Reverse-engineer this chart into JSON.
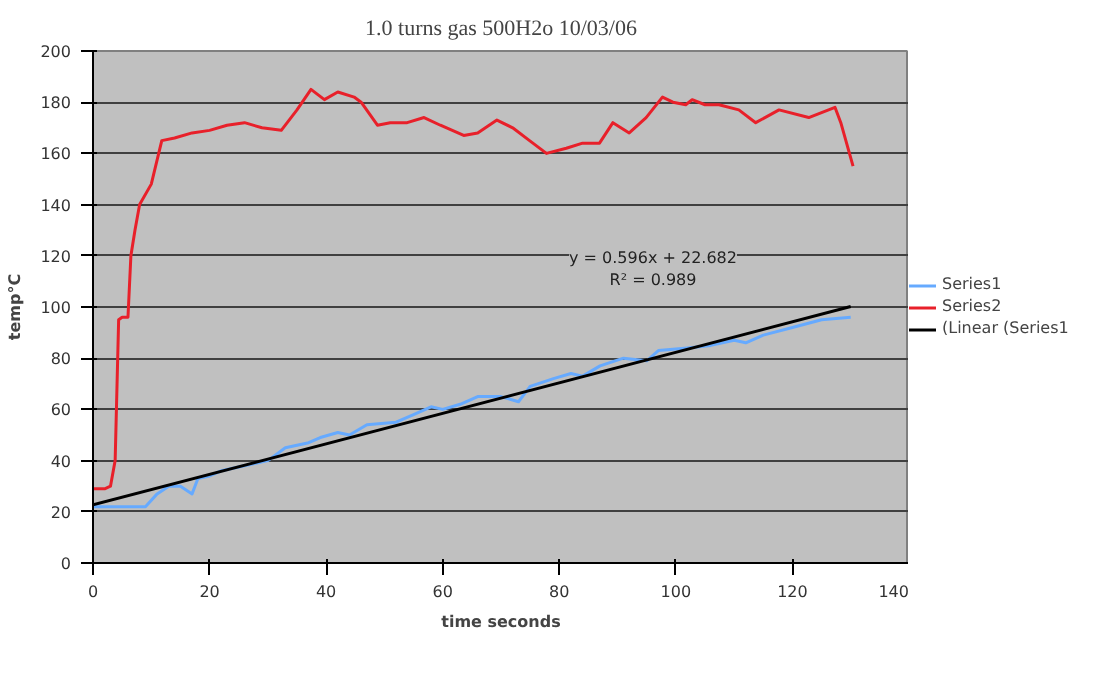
{
  "chart_data": {
    "type": "line",
    "title": "1.0 turns gas 500H2o 10/03/06",
    "xlabel": "time seconds",
    "ylabel": "temp°C",
    "xlim": [
      0,
      140
    ],
    "xticks": [
      0,
      20,
      40,
      60,
      80,
      100,
      120,
      140
    ],
    "ylim": [
      0,
      200
    ],
    "yticks": [
      0,
      20,
      40,
      60,
      80,
      100,
      120,
      140,
      160,
      180,
      200
    ],
    "grid": "y",
    "legend": "right",
    "line_style": "solid",
    "annotations": [
      "y = 0.596x + 22.682",
      "R² = 0.989"
    ],
    "series": [
      {
        "name": "Series1",
        "color": "#66aaff",
        "x": [
          0,
          3,
          6,
          9,
          11,
          13,
          15,
          17,
          18,
          20,
          22,
          26,
          30,
          33,
          37,
          39,
          42,
          44,
          47,
          52,
          55,
          58,
          60,
          63,
          66,
          70,
          73,
          75,
          79,
          82,
          84,
          87,
          91,
          95,
          97,
          102,
          106,
          110,
          112,
          115,
          120,
          125,
          130
        ],
        "values": [
          22,
          22,
          22,
          22,
          27,
          30,
          30,
          27,
          33,
          34,
          36,
          38,
          40,
          45,
          47,
          49,
          51,
          50,
          54,
          55,
          58,
          61,
          60,
          62,
          65,
          65,
          63,
          69,
          72,
          74,
          73,
          77,
          80,
          79,
          83,
          84,
          85,
          87,
          86,
          89,
          92,
          95,
          96
        ]
      },
      {
        "name": "Series2",
        "color": "#e8202a",
        "x": [
          0,
          2,
          3,
          3.8,
          4.4,
          5,
          6,
          6.5,
          7.2,
          8,
          10,
          11.8,
          14,
          17,
          20,
          23,
          26,
          29,
          32.3,
          35,
          37.4,
          39.7,
          42,
          44.8,
          46,
          48.8,
          51,
          53.9,
          56.8,
          59.6,
          63.6,
          66,
          69.3,
          72,
          74.9,
          77.8,
          81.2,
          84,
          86.9,
          89.2,
          92,
          94.9,
          97.7,
          99.5,
          101.7,
          102.8,
          105,
          107.4,
          110.8,
          113.7,
          117.7,
          122.8,
          127.3,
          128.3,
          130.4
        ],
        "values": [
          29,
          29,
          30,
          40,
          95,
          96,
          96,
          120,
          130,
          140,
          148,
          165,
          166,
          168,
          169,
          171,
          172,
          170,
          169,
          177,
          185,
          181,
          184,
          182,
          180,
          171,
          172,
          172,
          174,
          171,
          167,
          168,
          173,
          170,
          165,
          160,
          162,
          164,
          164,
          172,
          168,
          174,
          182,
          180,
          179,
          181,
          179,
          179,
          177,
          172,
          177,
          174,
          178,
          172,
          155
        ]
      },
      {
        "name": "(Linear (Series1",
        "type": "line",
        "color": "#000000",
        "x": [
          0,
          130
        ],
        "values": [
          22.7,
          100.2
        ]
      }
    ]
  }
}
